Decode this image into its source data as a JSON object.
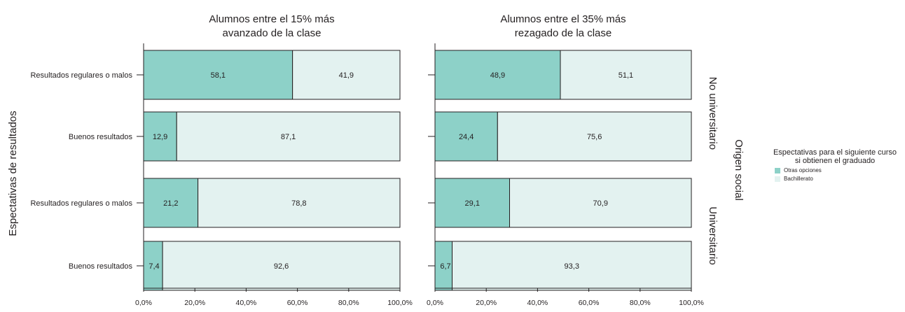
{
  "chart_data": {
    "type": "bar",
    "orientation": "horizontal",
    "stacked": true,
    "ylabel": "Espectativas de resultados",
    "xlim": [
      0,
      100
    ],
    "x_ticks": [
      "0,0%",
      "20,0%",
      "40,0%",
      "60,0%",
      "80,0%",
      "100,0%"
    ],
    "categories": [
      "Resultados regulares o malos",
      "Buenos resultados",
      "Resultados regulares o malos",
      "Buenos resultados"
    ],
    "row_groups": {
      "title": "Origen social",
      "groups": [
        {
          "label": "No universitario",
          "rows": [
            0,
            1
          ]
        },
        {
          "label": "Universitario",
          "rows": [
            2,
            3
          ]
        }
      ]
    },
    "panels": [
      {
        "title_lines": [
          "Alumnos entre el 15% más",
          "avanzado de la clase"
        ],
        "series": [
          {
            "name": "Otras opciones",
            "values": [
              58.1,
              12.9,
              21.2,
              7.4
            ],
            "labels": [
              "58,1",
              "12,9",
              "21,2",
              "7,4"
            ]
          },
          {
            "name": "Bachillerato",
            "values": [
              41.9,
              87.1,
              78.8,
              92.6
            ],
            "labels": [
              "41,9",
              "87,1",
              "78,8",
              "92,6"
            ]
          }
        ]
      },
      {
        "title_lines": [
          "Alumnos entre el 35% más",
          "rezagado de la clase"
        ],
        "series": [
          {
            "name": "Otras opciones",
            "values": [
              48.9,
              24.4,
              29.1,
              6.7
            ],
            "labels": [
              "48,9",
              "24,4",
              "29,1",
              "6,7"
            ]
          },
          {
            "name": "Bachillerato",
            "values": [
              51.1,
              75.6,
              70.9,
              93.3
            ],
            "labels": [
              "51,1",
              "75,6",
              "70,9",
              "93,3"
            ]
          }
        ]
      }
    ],
    "legend": {
      "title_lines": [
        "Espectativas para el siguiente curso",
        "si obtienen el graduado"
      ],
      "items": [
        "Otras opciones",
        "Bachillerato"
      ],
      "placement": "right"
    },
    "colors": {
      "Otras opciones": "#8dd1c8",
      "Bachillerato": "#e3f2f0"
    }
  }
}
